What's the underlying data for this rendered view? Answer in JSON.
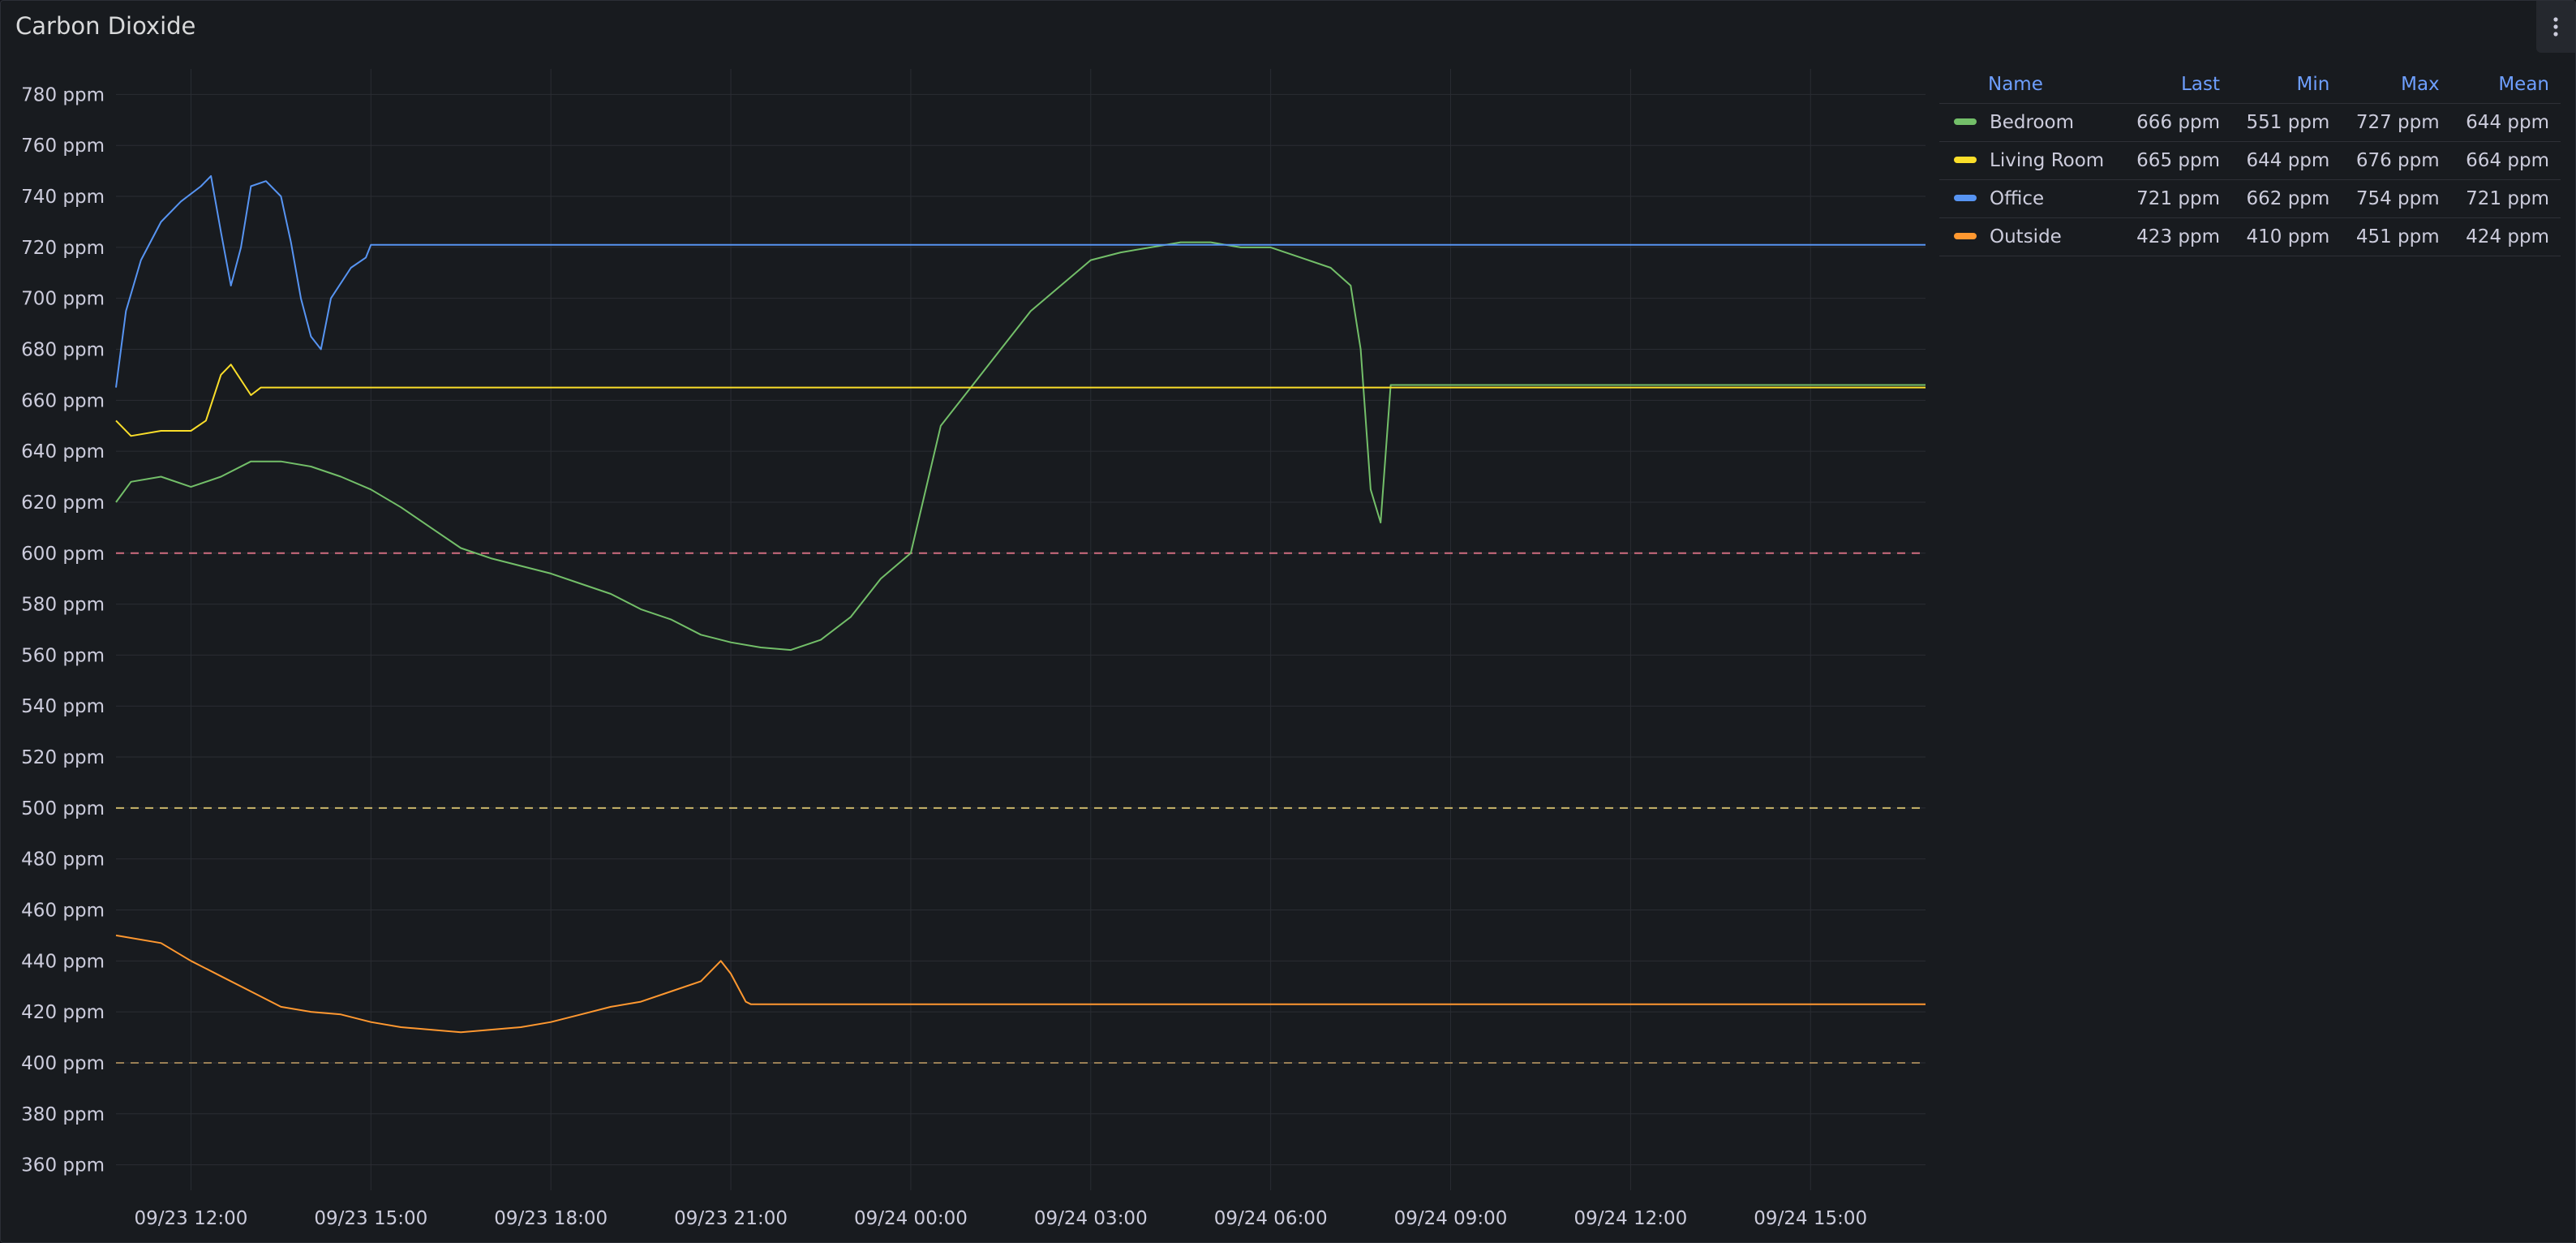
{
  "panel": {
    "title": "Carbon Dioxide",
    "menu_icon": "kebab-vertical-icon"
  },
  "colors": {
    "background": "#181b1f",
    "grid": "#2a2d33",
    "text": "#ccccdc",
    "header": "#6e9fff",
    "threshold_red": "#d06d80",
    "threshold_yellow": "#c9b56a",
    "threshold_orange": "#9a7f55"
  },
  "legend": {
    "headers": [
      "Name",
      "Last",
      "Min",
      "Max",
      "Mean"
    ],
    "rows": [
      {
        "name": "Bedroom",
        "color": "#73bf69",
        "last": "666 ppm",
        "min": "551 ppm",
        "max": "727 ppm",
        "mean": "644 ppm"
      },
      {
        "name": "Living Room",
        "color": "#fade2a",
        "last": "665 ppm",
        "min": "644 ppm",
        "max": "676 ppm",
        "mean": "664 ppm"
      },
      {
        "name": "Office",
        "color": "#5794f2",
        "last": "721 ppm",
        "min": "662 ppm",
        "max": "754 ppm",
        "mean": "721 ppm"
      },
      {
        "name": "Outside",
        "color": "#ff9830",
        "last": "423 ppm",
        "min": "410 ppm",
        "max": "451 ppm",
        "mean": "424 ppm"
      }
    ]
  },
  "chart_data": {
    "type": "line",
    "title": "Carbon Dioxide",
    "unit": "ppm",
    "x_ticks": [
      "09/23 12:00",
      "09/23 15:00",
      "09/23 18:00",
      "09/23 21:00",
      "09/24 00:00",
      "09/24 03:00",
      "09/24 06:00",
      "09/24 09:00",
      "09/24 12:00",
      "09/24 15:00"
    ],
    "y_ticks": [
      360,
      380,
      400,
      420,
      440,
      460,
      480,
      500,
      520,
      540,
      560,
      580,
      600,
      620,
      640,
      660,
      680,
      700,
      720,
      740,
      760,
      780
    ],
    "y_tick_labels": [
      "360 ppm",
      "380 ppm",
      "400 ppm",
      "420 ppm",
      "440 ppm",
      "460 ppm",
      "480 ppm",
      "500 ppm",
      "520 ppm",
      "540 ppm",
      "560 ppm",
      "580 ppm",
      "600 ppm",
      "620 ppm",
      "640 ppm",
      "660 ppm",
      "680 ppm",
      "700 ppm",
      "720 ppm",
      "740 ppm",
      "760 ppm",
      "780 ppm"
    ],
    "ylim": [
      350,
      790
    ],
    "xlim": [
      "09/23 10:45",
      "09/24 16:55"
    ],
    "grid": true,
    "legend_position": "right",
    "thresholds": [
      {
        "value": 600,
        "style": "dashed",
        "color": "#d06d80"
      },
      {
        "value": 500,
        "style": "dashed",
        "color": "#c9b56a"
      },
      {
        "value": 400,
        "style": "dashed",
        "color": "#9a7f55"
      }
    ],
    "series": [
      {
        "name": "Bedroom",
        "color": "#73bf69",
        "points": [
          [
            "09/23 10:45",
            620
          ],
          [
            "09/23 11:00",
            628
          ],
          [
            "09/23 11:30",
            630
          ],
          [
            "09/23 12:00",
            626
          ],
          [
            "09/23 12:30",
            630
          ],
          [
            "09/23 13:00",
            636
          ],
          [
            "09/23 13:30",
            636
          ],
          [
            "09/23 14:00",
            634
          ],
          [
            "09/23 14:30",
            630
          ],
          [
            "09/23 15:00",
            625
          ],
          [
            "09/23 15:30",
            618
          ],
          [
            "09/23 16:00",
            610
          ],
          [
            "09/23 16:30",
            602
          ],
          [
            "09/23 17:00",
            598
          ],
          [
            "09/23 17:30",
            595
          ],
          [
            "09/23 18:00",
            592
          ],
          [
            "09/23 18:30",
            588
          ],
          [
            "09/23 19:00",
            584
          ],
          [
            "09/23 19:30",
            578
          ],
          [
            "09/23 20:00",
            574
          ],
          [
            "09/23 20:30",
            568
          ],
          [
            "09/23 21:00",
            565
          ],
          [
            "09/23 21:30",
            563
          ],
          [
            "09/23 22:00",
            562
          ],
          [
            "09/23 22:30",
            566
          ],
          [
            "09/23 23:00",
            575
          ],
          [
            "09/23 23:30",
            590
          ],
          [
            "09/24 00:00",
            600
          ],
          [
            "09/24 00:30",
            650
          ],
          [
            "09/24 01:00",
            665
          ],
          [
            "09/24 01:30",
            680
          ],
          [
            "09/24 02:00",
            695
          ],
          [
            "09/24 02:30",
            705
          ],
          [
            "09/24 03:00",
            715
          ],
          [
            "09/24 03:30",
            718
          ],
          [
            "09/24 04:00",
            720
          ],
          [
            "09/24 04:30",
            722
          ],
          [
            "09/24 05:00",
            722
          ],
          [
            "09/24 05:30",
            720
          ],
          [
            "09/24 06:00",
            720
          ],
          [
            "09/24 06:30",
            716
          ],
          [
            "09/24 07:00",
            712
          ],
          [
            "09/24 07:20",
            705
          ],
          [
            "09/24 07:30",
            680
          ],
          [
            "09/24 07:40",
            625
          ],
          [
            "09/24 07:50",
            612
          ],
          [
            "09/24 08:00",
            666
          ],
          [
            "09/24 16:55",
            666
          ]
        ]
      },
      {
        "name": "Living Room",
        "color": "#fade2a",
        "points": [
          [
            "09/23 10:45",
            652
          ],
          [
            "09/23 11:00",
            646
          ],
          [
            "09/23 11:30",
            648
          ],
          [
            "09/23 12:00",
            648
          ],
          [
            "09/23 12:15",
            652
          ],
          [
            "09/23 12:30",
            670
          ],
          [
            "09/23 12:40",
            674
          ],
          [
            "09/23 13:00",
            662
          ],
          [
            "09/23 13:10",
            665
          ],
          [
            "09/24 16:55",
            665
          ]
        ]
      },
      {
        "name": "Office",
        "color": "#5794f2",
        "points": [
          [
            "09/23 10:45",
            665
          ],
          [
            "09/23 10:55",
            695
          ],
          [
            "09/23 11:10",
            715
          ],
          [
            "09/23 11:30",
            730
          ],
          [
            "09/23 11:50",
            738
          ],
          [
            "09/23 12:10",
            744
          ],
          [
            "09/23 12:20",
            748
          ],
          [
            "09/23 12:30",
            726
          ],
          [
            "09/23 12:40",
            705
          ],
          [
            "09/23 12:50",
            720
          ],
          [
            "09/23 13:00",
            744
          ],
          [
            "09/23 13:15",
            746
          ],
          [
            "09/23 13:30",
            740
          ],
          [
            "09/23 13:40",
            722
          ],
          [
            "09/23 13:50",
            700
          ],
          [
            "09/23 14:00",
            685
          ],
          [
            "09/23 14:10",
            680
          ],
          [
            "09/23 14:20",
            700
          ],
          [
            "09/23 14:40",
            712
          ],
          [
            "09/23 14:55",
            716
          ],
          [
            "09/23 15:00",
            721
          ],
          [
            "09/24 16:55",
            721
          ]
        ]
      },
      {
        "name": "Outside",
        "color": "#ff9830",
        "points": [
          [
            "09/23 10:45",
            450
          ],
          [
            "09/23 11:30",
            447
          ],
          [
            "09/23 12:00",
            440
          ],
          [
            "09/23 12:30",
            434
          ],
          [
            "09/23 13:00",
            428
          ],
          [
            "09/23 13:30",
            422
          ],
          [
            "09/23 14:00",
            420
          ],
          [
            "09/23 14:30",
            419
          ],
          [
            "09/23 15:00",
            416
          ],
          [
            "09/23 15:30",
            414
          ],
          [
            "09/23 16:00",
            413
          ],
          [
            "09/23 16:30",
            412
          ],
          [
            "09/23 17:00",
            413
          ],
          [
            "09/23 17:30",
            414
          ],
          [
            "09/23 18:00",
            416
          ],
          [
            "09/23 18:30",
            419
          ],
          [
            "09/23 19:00",
            422
          ],
          [
            "09/23 19:30",
            424
          ],
          [
            "09/23 20:00",
            428
          ],
          [
            "09/23 20:30",
            432
          ],
          [
            "09/23 20:50",
            440
          ],
          [
            "09/23 21:00",
            435
          ],
          [
            "09/23 21:15",
            424
          ],
          [
            "09/23 21:20",
            423
          ],
          [
            "09/24 16:55",
            423
          ]
        ]
      }
    ]
  }
}
